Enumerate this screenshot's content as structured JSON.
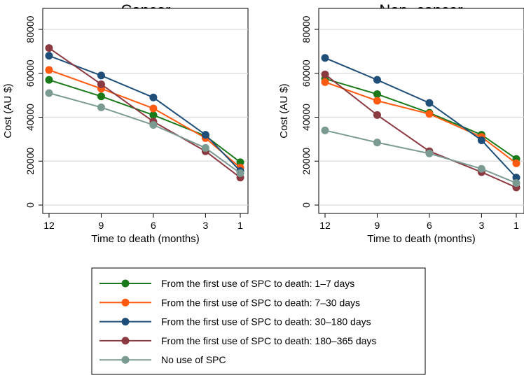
{
  "chart_data": [
    {
      "type": "line",
      "title": "Cancer",
      "xlabel": "Time to death (months)",
      "ylabel": "Cost (AU $)",
      "x": [
        12,
        9,
        6,
        3,
        1
      ],
      "x_tick_labels": [
        "12",
        "9",
        "6",
        "3",
        "1"
      ],
      "ylim": [
        0,
        80000
      ],
      "y_ticks": [
        0,
        20000,
        40000,
        60000,
        80000
      ],
      "y_tick_labels": [
        "0",
        "20000",
        "40000",
        "60000",
        "80000"
      ],
      "grid": true,
      "series": [
        {
          "name": "From the first use of SPC to death: 1–7 days",
          "color": "#1a7a1a",
          "values": [
            57000,
            49500,
            41000,
            31500,
            19500
          ]
        },
        {
          "name": "From the first use of SPC to death: 7–30 days",
          "color": "#ff5a10",
          "values": [
            61500,
            53000,
            44000,
            30500,
            17000
          ]
        },
        {
          "name": "From the first use of SPC to death: 30–180 days",
          "color": "#1f4e79",
          "values": [
            68000,
            59000,
            49000,
            32000,
            15500
          ]
        },
        {
          "name": "From the first use of SPC to death: 180–365 days",
          "color": "#8b3a42",
          "values": [
            71500,
            55000,
            38000,
            24500,
            12500
          ]
        },
        {
          "name": "No use of SPC",
          "color": "#7a9a92",
          "values": [
            51000,
            44500,
            36500,
            26000,
            14500
          ]
        }
      ]
    },
    {
      "type": "line",
      "title": "Non−cancer",
      "xlabel": "Time to death (months)",
      "ylabel": "Cost (AU $)",
      "x": [
        12,
        9,
        6,
        3,
        1
      ],
      "x_tick_labels": [
        "12",
        "9",
        "6",
        "3",
        "1"
      ],
      "ylim": [
        0,
        80000
      ],
      "y_ticks": [
        0,
        20000,
        40000,
        60000,
        80000
      ],
      "y_tick_labels": [
        "0",
        "20000",
        "40000",
        "60000",
        "80000"
      ],
      "grid": true,
      "series": [
        {
          "name": "From the first use of SPC to death: 1–7 days",
          "color": "#1a7a1a",
          "values": [
            57500,
            50500,
            42000,
            32000,
            21000
          ]
        },
        {
          "name": "From the first use of SPC to death: 7–30 days",
          "color": "#ff5a10",
          "values": [
            56000,
            47500,
            41500,
            31000,
            19000
          ]
        },
        {
          "name": "From the first use of SPC to death: 30–180 days",
          "color": "#1f4e79",
          "values": [
            67000,
            57000,
            46500,
            29500,
            12500
          ]
        },
        {
          "name": "From the first use of SPC to death: 180–365 days",
          "color": "#8b3a42",
          "values": [
            59500,
            41000,
            24500,
            15000,
            8000
          ]
        },
        {
          "name": "No use of SPC",
          "color": "#7a9a92",
          "values": [
            34000,
            28500,
            23500,
            16500,
            10000
          ]
        }
      ]
    }
  ],
  "legend": {
    "placement": "bottom-center",
    "items": [
      {
        "label": "From the first use of SPC to death: 1–7 days",
        "color": "#1a7a1a"
      },
      {
        "label": "From the first use of SPC to death: 7–30 days",
        "color": "#ff5a10"
      },
      {
        "label": "From the first use of SPC to death: 30–180 days",
        "color": "#1f4e79"
      },
      {
        "label": "From the first use of SPC to death: 180–365 days",
        "color": "#8b3a42"
      },
      {
        "label": "No use of SPC",
        "color": "#7a9a92"
      }
    ]
  }
}
